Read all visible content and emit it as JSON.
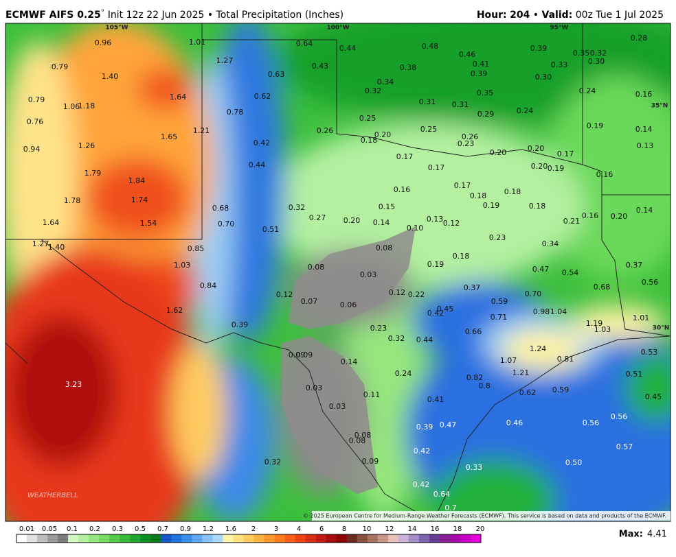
{
  "header": {
    "model": "ECMWF AIFS 0.25",
    "degree": "°",
    "info": "Init 12z 22 Jun 2025 • Total Precipitation (Inches)",
    "hour_label": "Hour:",
    "hour": "204",
    "separator": "•",
    "valid_label": "Valid:",
    "valid": "00z Tue 1 Jul 2025"
  },
  "map": {
    "graticule": [
      "105°W",
      "100°W",
      "95°W",
      "35°N",
      "30°N"
    ],
    "values": [
      "0.96",
      "1.01",
      "0.64",
      "0.44",
      "0.48",
      "0.46",
      "0.39",
      "0.35",
      "0.32",
      "0.28",
      "0.30",
      "0.79",
      "1.27",
      "0.43",
      "0.38",
      "0.41",
      "0.33",
      "1.40",
      "0.63",
      "0.34",
      "0.39",
      "0.30",
      "0.32",
      "1.64",
      "0.62",
      "0.35",
      "0.24",
      "0.16",
      "0.79",
      "1.06",
      "1.18",
      "0.78",
      "0.31",
      "0.31",
      "0.24",
      "0.29",
      "0.76",
      "0.25",
      "0.25",
      "0.26",
      "0.19",
      "0.14",
      "1.21",
      "0.26",
      "0.20",
      "0.18",
      "0.23",
      "1.65",
      "0.94",
      "1.26",
      "0.42",
      "0.13",
      "0.20",
      "0.20",
      "0.17",
      "0.17",
      "0.44",
      "0.17",
      "0.20",
      "0.19",
      "1.79",
      "1.84",
      "0.16",
      "0.16",
      "0.17",
      "0.18",
      "0.18",
      "1.78",
      "1.74",
      "0.19",
      "0.18",
      "0.15",
      "0.68",
      "0.32",
      "0.14",
      "0.20",
      "0.16",
      "0.27",
      "0.20",
      "0.14",
      "0.13",
      "0.12",
      "0.21",
      "1.64",
      "1.54",
      "0.70",
      "0.51",
      "0.10",
      "0.23",
      "1.27",
      "1.40",
      "0.85",
      "0.34",
      "0.08",
      "0.18",
      "1.03",
      "0.08",
      "0.19",
      "0.47",
      "0.54",
      "0.37",
      "0.03",
      "0.56",
      "0.84",
      "0.37",
      "0.68",
      "0.12",
      "0.07",
      "0.06",
      "0.12",
      "0.22",
      "0.59",
      "0.70",
      "1.62",
      "0.45",
      "0.42",
      "0.98",
      "1.04",
      "0.71",
      "1.01",
      "1.19",
      "1.03",
      "0.39",
      "0.23",
      "0.66",
      "0.32",
      "0.44",
      "0.09",
      "0.09",
      "0.53",
      "1.24",
      "1.07",
      "0.81",
      "0.14",
      "3.23",
      "1.21",
      "0.24",
      "0.51",
      "0.82",
      "0.8",
      "0.03",
      "0.62",
      "0.59",
      "0.11",
      "0.45",
      "0.41",
      "0.03",
      "0.46",
      "0.56",
      "0.56",
      "0.39",
      "0.47",
      "0.08",
      "0.08",
      "0.57",
      "0.42",
      "0.32",
      "0.50",
      "0.09",
      "0.33",
      "0.42",
      "0.64",
      "0.7"
    ],
    "watermark": "WEATHERBELL",
    "credit": "© 2025 European Centre for Medium-Range Weather Forecasts (ECMWF). This service is based on data and products of the ECMWF."
  },
  "colorbar": {
    "labels": [
      "0.01",
      "0.05",
      "0.1",
      "0.2",
      "0.3",
      "0.5",
      "0.7",
      "0.9",
      "1.2",
      "1.6",
      "2",
      "3",
      "4",
      "6",
      "8",
      "10",
      "12",
      "14",
      "16",
      "18",
      "20"
    ],
    "colors": [
      "#ffffff",
      "#e0e0e0",
      "#bdbdbd",
      "#9a9a9a",
      "#7c7c7c",
      "#d2f7c0",
      "#b4f0a0",
      "#96e67e",
      "#76dc62",
      "#55cc48",
      "#38bb3a",
      "#1ea82d",
      "#0c9024",
      "#0a7a1e",
      "#1558c8",
      "#1e74e0",
      "#3a8eee",
      "#5ca8f4",
      "#84c2f8",
      "#aad8fa",
      "#fff4a8",
      "#ffe280",
      "#ffcc5c",
      "#ffb23e",
      "#ff982a",
      "#ff7c1c",
      "#ff5e14",
      "#f2420f",
      "#dc2c12",
      "#c41a14",
      "#a80c0c",
      "#8c0606",
      "#6e2a1e",
      "#8a5040",
      "#a87462",
      "#c89688",
      "#e4c0b6",
      "#cab2d8",
      "#a48ec4",
      "#7c66ae",
      "#6a3c9a",
      "#8a1e98",
      "#a80aaa",
      "#c800c8",
      "#e600dc"
    ]
  },
  "footer": {
    "max_label": "Max:",
    "max_value": "4.41"
  }
}
